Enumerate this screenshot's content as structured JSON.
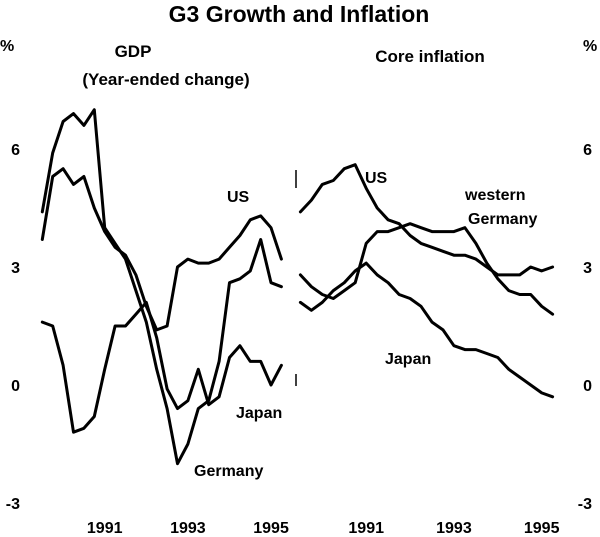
{
  "chart_data": {
    "title": "G3 Growth and Inflation",
    "type": "line",
    "y_unit_left": "%",
    "y_unit_right": "%",
    "ylim": [
      -3,
      9
    ],
    "yticks": [
      -3,
      0,
      3,
      6
    ],
    "ytick_labels_left": [
      "-3",
      "0",
      "3",
      "6"
    ],
    "ytick_labels_right": [
      "-3",
      "0",
      "3",
      "6"
    ],
    "panels": [
      {
        "key": "gdp",
        "title_line1": "GDP",
        "title_line2": "(Year-ended change)",
        "xlim": [
          1989.3,
          1995.6
        ],
        "xticks": [
          1991,
          1993,
          1995
        ],
        "xtick_labels": [
          "1991",
          "1993",
          "1995"
        ],
        "series": [
          {
            "name": "US",
            "label": "US",
            "x": [
              1989.5,
              1989.75,
              1990.0,
              1990.25,
              1990.5,
              1990.75,
              1991.0,
              1991.25,
              1991.5,
              1991.75,
              1992.0,
              1992.25,
              1992.5,
              1992.75,
              1993.0,
              1993.25,
              1993.5,
              1993.75,
              1994.0,
              1994.25,
              1994.5,
              1994.75,
              1995.0,
              1995.25
            ],
            "values": [
              3.7,
              5.3,
              5.5,
              5.1,
              5.3,
              4.5,
              3.9,
              3.5,
              3.3,
              2.8,
              2.0,
              1.4,
              1.5,
              3.0,
              3.2,
              3.1,
              3.1,
              3.2,
              3.5,
              3.8,
              4.2,
              4.3,
              4.0,
              3.2
            ]
          },
          {
            "name": "Germany",
            "label": "Germany",
            "x": [
              1989.5,
              1989.75,
              1990.0,
              1990.25,
              1990.5,
              1990.75,
              1991.0,
              1991.25,
              1991.5,
              1991.75,
              1992.0,
              1992.25,
              1992.5,
              1992.75,
              1993.0,
              1993.25,
              1993.5,
              1993.75,
              1994.0,
              1994.25,
              1994.5,
              1994.75,
              1995.0,
              1995.25
            ],
            "values": [
              4.4,
              5.9,
              6.7,
              6.9,
              6.6,
              7.0,
              4.0,
              3.6,
              3.2,
              2.4,
              1.6,
              0.4,
              -0.6,
              -2.0,
              -1.5,
              -0.6,
              -0.4,
              0.6,
              2.6,
              2.7,
              2.9,
              3.7,
              2.6,
              2.5
            ]
          },
          {
            "name": "Japan",
            "label": "Japan",
            "x": [
              1989.5,
              1989.75,
              1990.0,
              1990.25,
              1990.5,
              1990.75,
              1991.0,
              1991.25,
              1991.5,
              1991.75,
              1992.0,
              1992.25,
              1992.5,
              1992.75,
              1993.0,
              1993.25,
              1993.5,
              1993.75,
              1994.0,
              1994.25,
              1994.5,
              1994.75,
              1995.0,
              1995.25
            ],
            "values": [
              1.6,
              1.5,
              0.5,
              -1.2,
              -1.1,
              -0.8,
              0.4,
              1.5,
              1.5,
              1.8,
              2.1,
              1.2,
              -0.1,
              -0.6,
              -0.4,
              0.4,
              -0.5,
              -0.3,
              0.7,
              1.0,
              0.6,
              0.6,
              0.0,
              0.5
            ]
          }
        ]
      },
      {
        "key": "inflation",
        "title_line1": "Core inflation",
        "title_line2": "",
        "xlim": [
          1989.4,
          1995.6
        ],
        "xticks": [
          1991,
          1993,
          1995
        ],
        "xtick_labels": [
          "1991",
          "1993",
          "1995"
        ],
        "series": [
          {
            "name": "US",
            "label": "US",
            "x": [
              1989.5,
              1989.75,
              1990.0,
              1990.25,
              1990.5,
              1990.75,
              1991.0,
              1991.25,
              1991.5,
              1991.75,
              1992.0,
              1992.25,
              1992.5,
              1992.75,
              1993.0,
              1993.25,
              1993.5,
              1993.75,
              1994.0,
              1994.25,
              1994.5,
              1994.75,
              1995.0,
              1995.25
            ],
            "values": [
              4.4,
              4.7,
              5.1,
              5.2,
              5.5,
              5.6,
              5.0,
              4.5,
              4.2,
              4.1,
              3.8,
              3.6,
              3.5,
              3.4,
              3.3,
              3.3,
              3.2,
              3.0,
              2.8,
              2.8,
              2.8,
              3.0,
              2.9,
              3.0
            ]
          },
          {
            "name": "western Germany",
            "label1": "western",
            "label2": "Germany",
            "x": [
              1989.5,
              1989.75,
              1990.0,
              1990.25,
              1990.5,
              1990.75,
              1991.0,
              1991.25,
              1991.5,
              1991.75,
              1992.0,
              1992.25,
              1992.5,
              1992.75,
              1993.0,
              1993.25,
              1993.5,
              1993.75,
              1994.0,
              1994.25,
              1994.5,
              1994.75,
              1995.0,
              1995.25
            ],
            "values": [
              2.8,
              2.5,
              2.3,
              2.2,
              2.4,
              2.6,
              3.6,
              3.9,
              3.9,
              4.0,
              4.1,
              4.0,
              3.9,
              3.9,
              3.9,
              4.0,
              3.6,
              3.1,
              2.7,
              2.4,
              2.3,
              2.3,
              2.0,
              1.8
            ]
          },
          {
            "name": "Japan",
            "label": "Japan",
            "x": [
              1989.5,
              1989.75,
              1990.0,
              1990.25,
              1990.5,
              1990.75,
              1991.0,
              1991.25,
              1991.5,
              1991.75,
              1992.0,
              1992.25,
              1992.5,
              1992.75,
              1993.0,
              1993.25,
              1993.5,
              1993.75,
              1994.0,
              1994.25,
              1994.5,
              1994.75,
              1995.0,
              1995.25
            ],
            "values": [
              2.1,
              1.9,
              2.1,
              2.4,
              2.6,
              2.9,
              3.1,
              2.8,
              2.6,
              2.3,
              2.2,
              2.0,
              1.6,
              1.4,
              1.0,
              0.9,
              0.9,
              0.8,
              0.7,
              0.4,
              0.2,
              0.0,
              -0.2,
              -0.3
            ]
          }
        ]
      }
    ]
  }
}
